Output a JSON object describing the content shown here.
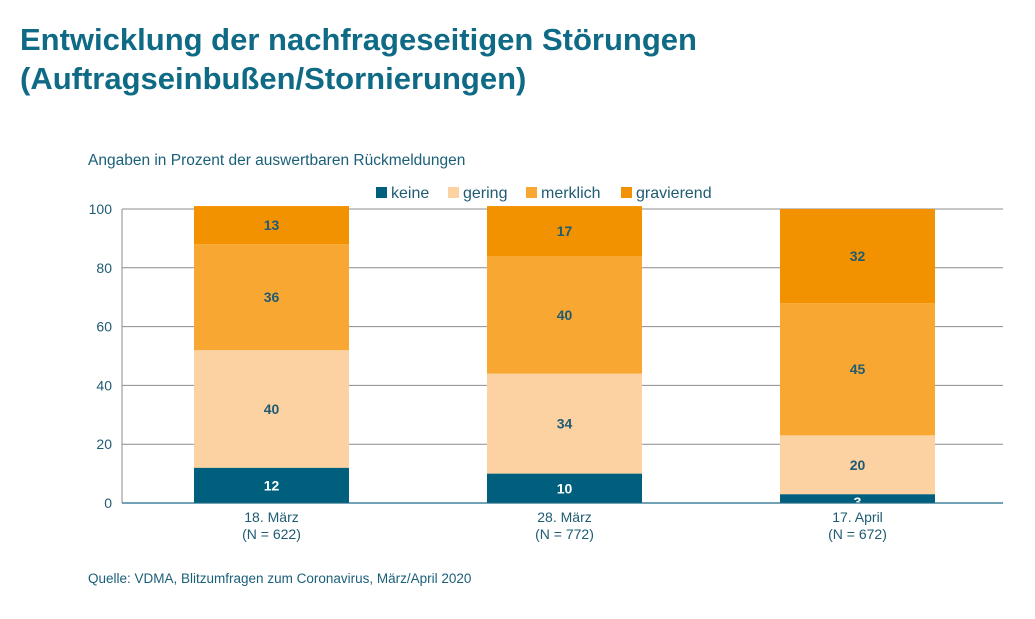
{
  "title_line1": "Entwicklung der nachfrageseitigen Störungen",
  "title_line2": "(Auftragseinbußen/Stornierungen)",
  "subtitle": "Angaben in Prozent der auswertbaren Rückmeldungen",
  "source": "Quelle: VDMA, Blitzumfragen zum Coronavirus, März/April 2020",
  "chart_data": {
    "type": "bar",
    "stacked": true,
    "categories": [
      [
        "18. März",
        "(N = 622)"
      ],
      [
        "28. März",
        "(N = 772)"
      ],
      [
        "17. April",
        "(N = 672)"
      ]
    ],
    "series": [
      {
        "name": "keine",
        "color": "#005f7d",
        "values": [
          12,
          10,
          3
        ]
      },
      {
        "name": "gering",
        "color": "#fdd2a2",
        "values": [
          40,
          34,
          20
        ]
      },
      {
        "name": "merklich",
        "color": "#f8a832",
        "values": [
          36,
          40,
          45
        ]
      },
      {
        "name": "gravierend",
        "color": "#f39200",
        "values": [
          13,
          17,
          32
        ]
      }
    ],
    "ylim": [
      0,
      100
    ],
    "yticks": [
      0,
      20,
      40,
      60,
      80,
      100
    ],
    "grid": true,
    "legend": "top-center",
    "label_color": "#1f5b72"
  }
}
